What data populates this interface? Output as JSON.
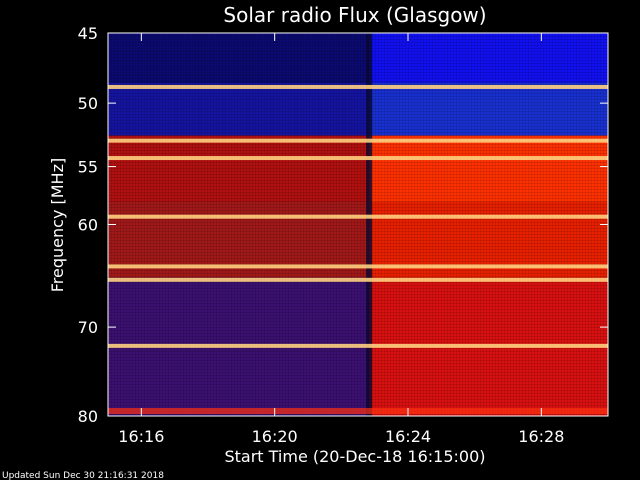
{
  "chart_data": {
    "type": "heatmap",
    "title": "Solar radio Flux (Glasgow)",
    "xlabel": "Start Time (20-Dec-18 16:15:00)",
    "ylabel": "Frequency [MHz]",
    "x_unit": "UT time",
    "x_range": [
      "16:15:00",
      "16:30:00"
    ],
    "xticks": [
      {
        "time": "16:16",
        "label": "16:16"
      },
      {
        "time": "16:20",
        "label": "16:20"
      },
      {
        "time": "16:24",
        "label": "16:24"
      },
      {
        "time": "16:28",
        "label": "16:28"
      }
    ],
    "y_unit": "MHz",
    "ylim": [
      45,
      80
    ],
    "y_inverted": true,
    "y_scale": "log",
    "yticks": [
      45,
      50,
      55,
      60,
      70,
      80
    ],
    "colormap": [
      "#000018",
      "#0010ff",
      "#c00000",
      "#ff4000",
      "#ffd080"
    ],
    "transition_time": "16:22:50",
    "segments": [
      {
        "from": "16:15:00",
        "to": "16:22:50",
        "band_colors": {
          "45-48.5": "#0a0a70",
          "48.5-52.5": "#1414a0",
          "52.5-58": "#b01010",
          "58-65": "#a01818",
          "65-80": "#3a1070"
        }
      },
      {
        "from": "16:22:50",
        "to": "16:30:00",
        "band_colors": {
          "45-48.5": "#1010f0",
          "48.5-52.5": "#1830d0",
          "52.5-58": "#ff3000",
          "58-65": "#e82000",
          "65-80": "#d81010"
        }
      }
    ],
    "bright_lines_mhz": [
      48.8,
      52.9,
      54.3,
      59.3,
      63.9,
      65.2,
      72.0
    ],
    "grid": false
  },
  "footer": {
    "text": "Updated Sun Dec 30 21:16:31 2018"
  }
}
